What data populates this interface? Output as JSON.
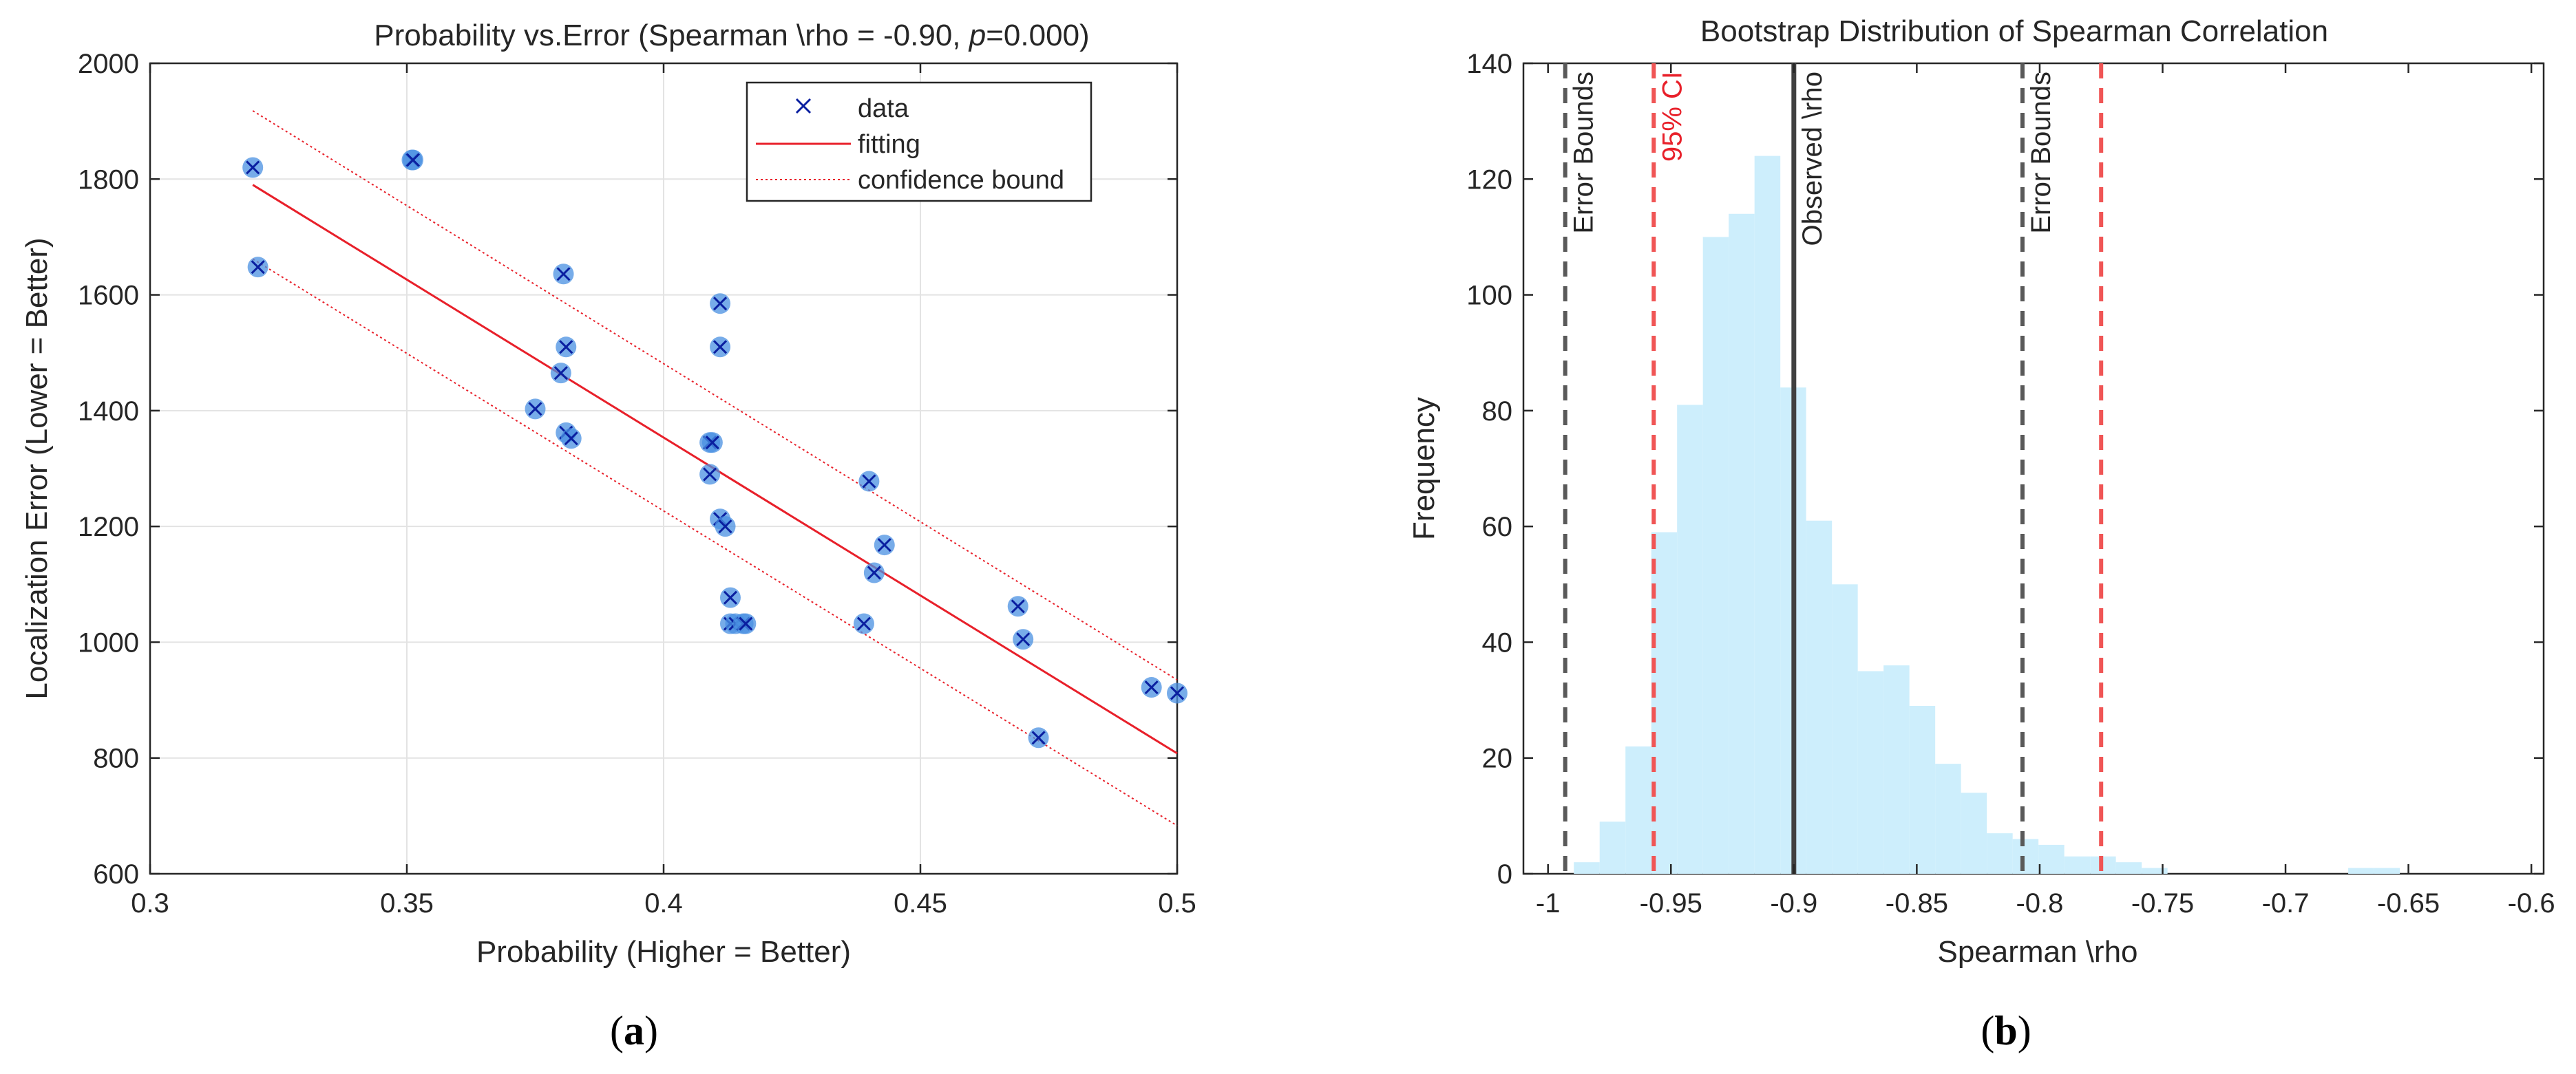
{
  "captions": {
    "a": "a",
    "b": "b"
  },
  "chart_data": [
    {
      "id": "a",
      "type": "scatter",
      "title_prefix": "Probability vs.Error (Spearman \\rho = -0.90,  ",
      "title_p": "p",
      "title_suffix": "=0.000)",
      "xlabel": "Probability (Higher = Better)",
      "ylabel": "Localization Error (Lower = Better)",
      "xlim": [
        0.3,
        0.5
      ],
      "ylim": [
        600,
        2000
      ],
      "xticks": [
        0.3,
        0.35,
        0.4,
        0.45,
        0.5
      ],
      "yticks": [
        600,
        800,
        1000,
        1200,
        1400,
        1600,
        1800,
        2000
      ],
      "xtick_labels": [
        "0.3",
        "0.35",
        "0.4",
        "0.45",
        "0.5"
      ],
      "ytick_labels": [
        "600",
        "800",
        "1000",
        "1200",
        "1400",
        "1600",
        "1800",
        "2000"
      ],
      "grid": true,
      "legend_position": "top-right",
      "legend": {
        "data": "data",
        "fitting": "fitting",
        "bound": "confidence bound"
      },
      "colors": {
        "marker_fill": "#4a90e2",
        "marker_x": "#0a1fa0",
        "fit": "#e8202a",
        "bound": "#e8202a"
      },
      "points": [
        [
          0.32,
          1820
        ],
        [
          0.321,
          1648
        ],
        [
          0.351,
          1833
        ],
        [
          0.3512,
          1833
        ],
        [
          0.375,
          1403
        ],
        [
          0.38,
          1465
        ],
        [
          0.3805,
          1636
        ],
        [
          0.381,
          1510
        ],
        [
          0.381,
          1362
        ],
        [
          0.382,
          1352
        ],
        [
          0.409,
          1345
        ],
        [
          0.4095,
          1345
        ],
        [
          0.409,
          1290
        ],
        [
          0.411,
          1585
        ],
        [
          0.411,
          1510
        ],
        [
          0.411,
          1213
        ],
        [
          0.412,
          1200
        ],
        [
          0.413,
          1077
        ],
        [
          0.413,
          1032
        ],
        [
          0.414,
          1032
        ],
        [
          0.4155,
          1032
        ],
        [
          0.416,
          1032
        ],
        [
          0.439,
          1032
        ],
        [
          0.44,
          1278
        ],
        [
          0.441,
          1120
        ],
        [
          0.443,
          1168
        ],
        [
          0.469,
          1062
        ],
        [
          0.47,
          1005
        ],
        [
          0.473,
          835
        ],
        [
          0.495,
          922
        ],
        [
          0.5,
          912
        ]
      ],
      "fit": {
        "x": [
          0.32,
          0.5
        ],
        "y": [
          1790,
          808
        ]
      },
      "bound_upper": {
        "x": [
          0.32,
          0.5
        ],
        "y": [
          1918,
          935
        ]
      },
      "bound_lower": {
        "x": [
          0.32,
          0.5
        ],
        "y": [
          1662,
          683
        ]
      }
    },
    {
      "id": "b",
      "type": "bar",
      "title": "Bootstrap Distribution of Spearman Correlation",
      "xlabel": "Spearman \\rho",
      "ylabel": "Frequency",
      "xlim": [
        -1.01,
        -0.595
      ],
      "ylim": [
        0,
        140
      ],
      "xticks": [
        -1,
        -0.95,
        -0.9,
        -0.85,
        -0.8,
        -0.75,
        -0.7,
        -0.65,
        -0.6
      ],
      "yticks": [
        0,
        20,
        40,
        60,
        80,
        100,
        120,
        140
      ],
      "xtick_labels": [
        "-1",
        "-0.95",
        "-0.9",
        "-0.85",
        "-0.8",
        "-0.75",
        "-0.7",
        "-0.65",
        "-0.6"
      ],
      "ytick_labels": [
        "0",
        "20",
        "40",
        "60",
        "80",
        "100",
        "120",
        "140"
      ],
      "grid": false,
      "bin_width": 0.0105,
      "bin_start": -0.9895,
      "values": [
        2,
        9,
        22,
        59,
        81,
        110,
        114,
        124,
        84,
        61,
        50,
        35,
        36,
        29,
        19,
        14,
        7,
        6,
        5,
        3,
        3,
        2,
        1,
        0,
        0,
        0,
        0,
        0,
        0,
        0,
        1,
        1
      ],
      "colors": {
        "bars": "#cdeefc",
        "observed": "#404040",
        "error_bounds": "#595959",
        "ci": "#f05555"
      },
      "vlines": [
        {
          "x": -0.993,
          "kind": "error_bounds",
          "label": "Error Bounds"
        },
        {
          "x": -0.957,
          "kind": "ci",
          "label": "95% CI"
        },
        {
          "x": -0.9,
          "kind": "observed",
          "label": "Observed \\rho"
        },
        {
          "x": -0.807,
          "kind": "error_bounds",
          "label": "Error Bounds"
        },
        {
          "x": -0.775,
          "kind": "ci",
          "label": ""
        }
      ]
    }
  ]
}
